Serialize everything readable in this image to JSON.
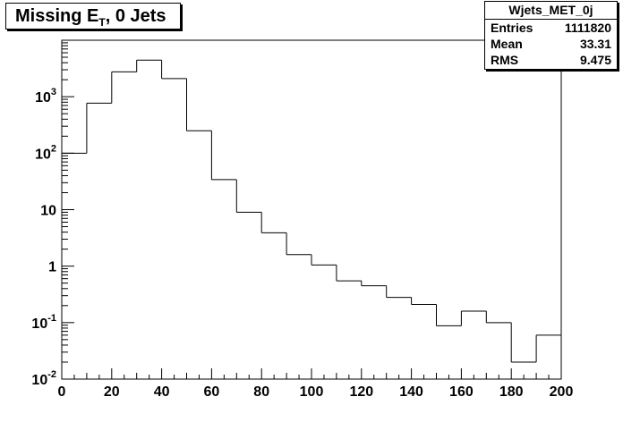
{
  "chart_data": {
    "type": "bar",
    "title_main": "Missing E",
    "title_sub": "T",
    "title_rest": ", 0 Jets",
    "xlabel": "",
    "ylabel": "",
    "xlim": [
      0,
      200
    ],
    "ylim": [
      0.01,
      10000
    ],
    "yscale": "log",
    "grid": false,
    "bin_edges": [
      0,
      10,
      20,
      30,
      40,
      50,
      60,
      70,
      80,
      90,
      100,
      110,
      120,
      130,
      140,
      150,
      160,
      170,
      180,
      190,
      200
    ],
    "values": [
      100,
      770,
      2750,
      4450,
      2100,
      250,
      34,
      9,
      3.9,
      1.6,
      1.05,
      0.55,
      0.45,
      0.28,
      0.21,
      0.088,
      0.16,
      0.1,
      0.02,
      0.06
    ],
    "x_ticks": [
      "0",
      "20",
      "40",
      "60",
      "80",
      "100",
      "120",
      "140",
      "160",
      "180",
      "200"
    ],
    "y_ticks": [
      {
        "value": 0.01,
        "mant": "10",
        "exp": "-2"
      },
      {
        "value": 0.1,
        "mant": "10",
        "exp": "-1"
      },
      {
        "value": 1,
        "mant": "1",
        "exp": ""
      },
      {
        "value": 10,
        "mant": "10",
        "exp": ""
      },
      {
        "value": 100,
        "mant": "10",
        "exp": "2"
      },
      {
        "value": 1000,
        "mant": "10",
        "exp": "3"
      }
    ],
    "stats": {
      "name": "Wjets_MET_0j",
      "rows": [
        {
          "key": "Entries",
          "value": "1111820"
        },
        {
          "key": "Mean",
          "value": "33.31"
        },
        {
          "key": "RMS",
          "value": "9.475"
        }
      ]
    }
  }
}
